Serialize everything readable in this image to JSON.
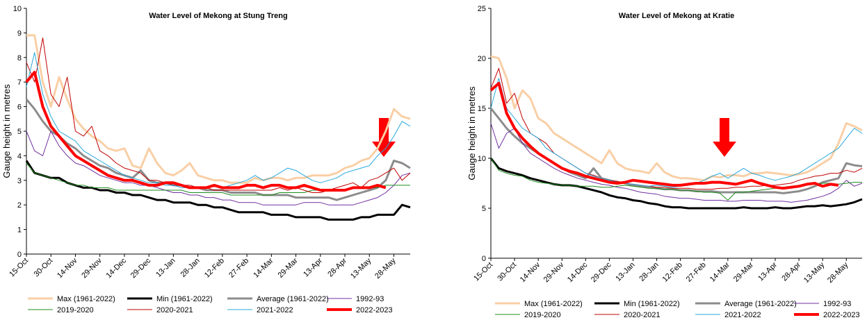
{
  "chart_data": [
    {
      "type": "line",
      "title": "Water Level of Mekong at Stung Treng",
      "y_label": "Gauge height in metres",
      "categories": [
        "15-Oct",
        null,
        null,
        "30-Oct",
        null,
        null,
        "14-Nov",
        null,
        null,
        "29-Nov",
        null,
        null,
        "14-Dec",
        null,
        null,
        "29-Dec",
        null,
        null,
        "13-Jan",
        null,
        null,
        "28-Jan",
        null,
        null,
        "12-Feb",
        null,
        null,
        "27-Feb",
        null,
        null,
        "14-Mar",
        null,
        null,
        "29-Mar",
        null,
        null,
        "13-Apr",
        null,
        null,
        "28-Apr",
        null,
        null,
        "13-May",
        null,
        null,
        "28-May",
        null,
        null
      ],
      "ylim": [
        0,
        10
      ],
      "yticks": [
        0,
        1,
        2,
        3,
        4,
        5,
        6,
        7,
        8,
        9,
        10
      ],
      "grid": false,
      "series": [
        {
          "name": "Max (1961-2022)",
          "color": "#f9cfa6",
          "width": 3,
          "values": [
            8.9,
            8.9,
            7.0,
            6.0,
            7.2,
            6.3,
            5.5,
            5.1,
            4.8,
            4.6,
            4.3,
            4.2,
            4.3,
            3.6,
            3.5,
            4.3,
            3.7,
            3.3,
            3.2,
            3.4,
            3.7,
            3.2,
            3.1,
            3.0,
            3.0,
            2.9,
            2.9,
            2.9,
            3.1,
            3.0,
            3.1,
            3.1,
            3.0,
            3.1,
            3.1,
            3.2,
            3.2,
            3.2,
            3.3,
            3.5,
            3.6,
            3.8,
            3.9,
            4.3,
            5.0,
            5.9,
            5.6,
            5.5
          ]
        },
        {
          "name": "Min (1961-2022)",
          "color": "#000000",
          "width": 3,
          "values": [
            3.8,
            3.3,
            3.2,
            3.1,
            3.1,
            2.9,
            2.8,
            2.7,
            2.7,
            2.6,
            2.6,
            2.5,
            2.5,
            2.4,
            2.4,
            2.3,
            2.2,
            2.2,
            2.1,
            2.1,
            2.1,
            2.0,
            2.0,
            1.9,
            1.9,
            1.8,
            1.7,
            1.7,
            1.7,
            1.7,
            1.6,
            1.6,
            1.6,
            1.5,
            1.5,
            1.5,
            1.5,
            1.4,
            1.4,
            1.4,
            1.4,
            1.5,
            1.5,
            1.6,
            1.6,
            1.6,
            2.0,
            1.9
          ]
        },
        {
          "name": "Average (1961-2022)",
          "color": "#8c8c8c",
          "width": 3,
          "values": [
            6.3,
            5.9,
            5.4,
            5.0,
            4.8,
            4.5,
            4.3,
            4.0,
            3.8,
            3.6,
            3.5,
            3.3,
            3.2,
            3.1,
            3.4,
            3.0,
            2.9,
            2.9,
            2.8,
            2.8,
            2.7,
            2.7,
            2.6,
            2.6,
            2.6,
            2.5,
            2.5,
            2.5,
            2.5,
            2.4,
            2.4,
            2.4,
            2.4,
            2.3,
            2.3,
            2.3,
            2.3,
            2.3,
            2.2,
            2.3,
            2.4,
            2.5,
            2.6,
            2.7,
            3.0,
            3.8,
            3.7,
            3.5
          ]
        },
        {
          "name": "1992-93",
          "color": "#7030a0",
          "width": 1,
          "values": [
            5.0,
            4.2,
            4.0,
            5.0,
            4.4,
            4.0,
            3.7,
            3.6,
            3.4,
            3.2,
            3.1,
            3.0,
            2.9,
            2.9,
            2.8,
            2.8,
            2.7,
            2.6,
            2.5,
            2.5,
            2.4,
            2.4,
            2.3,
            2.3,
            2.2,
            2.2,
            2.1,
            2.1,
            2.1,
            2.0,
            2.0,
            2.0,
            2.0,
            2.0,
            2.1,
            2.1,
            2.1,
            2.0,
            2.0,
            2.0,
            2.0,
            2.1,
            2.2,
            2.3,
            2.5,
            2.8,
            3.2,
            3.3
          ]
        },
        {
          "name": "2019-2020",
          "color": "#1e8c1e",
          "width": 1,
          "values": [
            3.7,
            3.3,
            3.2,
            3.1,
            3.0,
            2.9,
            2.8,
            2.8,
            2.7,
            2.7,
            2.7,
            2.6,
            2.6,
            2.6,
            2.6,
            2.6,
            2.6,
            2.6,
            2.6,
            2.6,
            2.5,
            2.5,
            2.5,
            2.5,
            2.5,
            2.4,
            2.4,
            2.4,
            2.4,
            2.4,
            2.4,
            2.5,
            2.5,
            2.5,
            2.5,
            2.6,
            2.6,
            2.6,
            2.6,
            2.6,
            2.7,
            2.7,
            2.7,
            2.7,
            2.8,
            2.8,
            2.8,
            2.8
          ]
        },
        {
          "name": "2020-2021",
          "color": "#c00000",
          "width": 1,
          "values": [
            7.8,
            7.0,
            8.8,
            6.5,
            6.0,
            7.2,
            5.0,
            4.8,
            5.2,
            4.2,
            4.0,
            3.7,
            3.5,
            3.4,
            3.3,
            3.0,
            3.0,
            2.9,
            2.8,
            2.8,
            2.8,
            2.7,
            2.7,
            2.6,
            2.6,
            2.6,
            2.6,
            2.6,
            2.6,
            2.6,
            2.6,
            2.7,
            2.6,
            2.7,
            2.6,
            2.5,
            2.5,
            2.6,
            2.7,
            2.8,
            2.9,
            2.7,
            3.0,
            3.1,
            3.3,
            3.5,
            3.0,
            3.3
          ]
        },
        {
          "name": "2021-2022",
          "color": "#29a8dc",
          "width": 1,
          "values": [
            6.8,
            8.2,
            6.5,
            5.6,
            5.0,
            4.8,
            4.6,
            4.2,
            4.0,
            3.8,
            3.6,
            3.4,
            3.2,
            3.1,
            3.0,
            2.9,
            2.9,
            2.8,
            2.8,
            2.7,
            2.7,
            2.7,
            2.7,
            2.8,
            2.7,
            2.8,
            2.9,
            3.0,
            3.2,
            3.0,
            3.1,
            3.3,
            3.5,
            3.4,
            3.2,
            3.0,
            2.9,
            3.0,
            3.1,
            3.3,
            3.4,
            3.5,
            3.6,
            4.0,
            4.3,
            4.8,
            5.4,
            5.2
          ]
        },
        {
          "name": "2022-2023",
          "color": "#ff0000",
          "width": 4,
          "values": [
            7.0,
            7.4,
            6.0,
            5.2,
            4.8,
            4.4,
            4.0,
            3.8,
            3.6,
            3.4,
            3.2,
            3.1,
            3.0,
            3.0,
            2.9,
            2.8,
            2.8,
            2.9,
            2.9,
            2.8,
            2.7,
            2.7,
            2.7,
            2.8,
            2.7,
            2.7,
            2.7,
            2.8,
            2.8,
            2.7,
            2.8,
            2.8,
            2.7,
            2.7,
            2.8,
            2.7,
            2.6,
            2.6,
            2.6,
            2.6,
            2.7,
            2.7,
            2.7,
            2.8,
            2.7,
            null,
            null,
            null
          ]
        }
      ]
    },
    {
      "type": "line",
      "title": "Water Level of Mekong at Kratie",
      "y_label": "Gauge height in metres",
      "categories": [
        "15-Oct",
        null,
        null,
        "30-Oct",
        null,
        null,
        "14-Nov",
        null,
        null,
        "29-Nov",
        null,
        null,
        "14-Dec",
        null,
        null,
        "29-Dec",
        null,
        null,
        "13-Jan",
        null,
        null,
        "28-Jan",
        null,
        null,
        "12-Feb",
        null,
        null,
        "27-Feb",
        null,
        null,
        "14-Mar",
        null,
        null,
        "29-Mar",
        null,
        null,
        "13-Apr",
        null,
        null,
        "28-Apr",
        null,
        null,
        "13-May",
        null,
        null,
        "28-May",
        null,
        null
      ],
      "ylim": [
        0,
        25
      ],
      "yticks": [
        0,
        5,
        10,
        15,
        20,
        25
      ],
      "grid": false,
      "series": [
        {
          "name": "Max (1961-2022)",
          "color": "#f9cfa6",
          "width": 3,
          "values": [
            20.2,
            20.0,
            18.0,
            15.0,
            16.8,
            16.0,
            14.0,
            13.5,
            12.5,
            12.0,
            11.5,
            11.0,
            10.5,
            10.0,
            9.5,
            10.8,
            9.5,
            9.0,
            8.8,
            8.7,
            8.5,
            9.5,
            8.6,
            8.2,
            8.0,
            8.0,
            7.9,
            7.8,
            8.2,
            8.1,
            8.3,
            8.3,
            8.2,
            8.5,
            8.5,
            8.6,
            8.5,
            8.4,
            8.3,
            8.4,
            8.6,
            9.0,
            9.5,
            10.0,
            11.5,
            13.5,
            13.2,
            12.8
          ]
        },
        {
          "name": "Min (1961-2022)",
          "color": "#000000",
          "width": 3,
          "values": [
            10.0,
            9.0,
            8.7,
            8.5,
            8.3,
            8.0,
            7.8,
            7.6,
            7.4,
            7.3,
            7.3,
            7.2,
            7.0,
            6.8,
            6.6,
            6.3,
            6.1,
            6.0,
            5.8,
            5.7,
            5.5,
            5.4,
            5.2,
            5.1,
            5.1,
            5.0,
            5.0,
            5.0,
            5.0,
            5.0,
            5.0,
            5.0,
            5.1,
            5.0,
            5.0,
            5.0,
            5.1,
            5.0,
            5.0,
            5.1,
            5.2,
            5.2,
            5.3,
            5.2,
            5.3,
            5.4,
            5.6,
            5.9
          ]
        },
        {
          "name": "Average (1961-2022)",
          "color": "#8c8c8c",
          "width": 3,
          "values": [
            15.0,
            14.0,
            13.0,
            12.2,
            11.5,
            11.0,
            10.5,
            10.0,
            9.5,
            9.0,
            8.6,
            8.3,
            8.0,
            9.0,
            8.0,
            7.8,
            7.6,
            7.5,
            7.3,
            7.2,
            7.1,
            7.0,
            6.9,
            6.9,
            6.8,
            6.8,
            6.7,
            6.7,
            6.7,
            6.6,
            6.6,
            6.6,
            6.6,
            6.6,
            6.6,
            6.6,
            6.6,
            6.5,
            6.6,
            6.7,
            6.9,
            7.2,
            7.6,
            7.8,
            8.0,
            9.5,
            9.3,
            9.2
          ]
        },
        {
          "name": "1992-93",
          "color": "#7030a0",
          "width": 1,
          "values": [
            13.5,
            11.0,
            12.5,
            13.0,
            11.5,
            10.5,
            10.0,
            9.5,
            9.0,
            8.6,
            8.3,
            8.0,
            7.8,
            7.6,
            7.4,
            7.3,
            7.1,
            7.0,
            6.8,
            6.6,
            6.5,
            6.4,
            6.2,
            6.1,
            6.0,
            6.0,
            5.9,
            5.8,
            5.8,
            5.8,
            5.7,
            5.7,
            5.8,
            5.8,
            5.8,
            5.7,
            5.7,
            5.7,
            5.6,
            5.7,
            5.8,
            6.0,
            6.2,
            6.5,
            7.0,
            7.8,
            7.2,
            7.5
          ]
        },
        {
          "name": "2019-2020",
          "color": "#1e8c1e",
          "width": 1,
          "values": [
            10.0,
            8.8,
            8.5,
            8.3,
            8.2,
            7.8,
            7.6,
            7.5,
            7.4,
            7.3,
            7.3,
            7.2,
            7.2,
            7.2,
            7.1,
            7.1,
            7.2,
            7.3,
            7.2,
            7.1,
            7.0,
            7.0,
            6.9,
            6.9,
            6.8,
            6.8,
            6.7,
            6.6,
            6.6,
            6.5,
            5.8,
            6.6,
            6.6,
            6.7,
            6.8,
            6.9,
            7.0,
            7.1,
            7.2,
            7.3,
            7.3,
            7.4,
            7.5,
            7.5,
            7.4,
            7.5,
            7.6,
            7.6
          ]
        },
        {
          "name": "2020-2021",
          "color": "#c00000",
          "width": 1,
          "values": [
            17.0,
            19.0,
            15.5,
            16.5,
            14.0,
            12.5,
            12.0,
            11.5,
            10.5,
            10.0,
            9.5,
            9.0,
            8.5,
            8.3,
            8.0,
            7.8,
            7.7,
            7.5,
            7.4,
            7.3,
            7.2,
            7.1,
            7.1,
            7.0,
            7.0,
            7.0,
            6.9,
            6.9,
            6.9,
            7.0,
            7.0,
            7.1,
            7.1,
            7.2,
            7.2,
            7.3,
            7.3,
            7.4,
            7.5,
            7.8,
            8.0,
            8.2,
            8.3,
            8.5,
            8.5,
            8.8,
            8.6,
            9.0
          ]
        },
        {
          "name": "2021-2022",
          "color": "#29a8dc",
          "width": 1,
          "values": [
            15.0,
            18.0,
            15.0,
            14.0,
            13.0,
            12.5,
            12.0,
            11.0,
            10.5,
            10.0,
            9.5,
            9.0,
            8.5,
            8.2,
            8.0,
            7.8,
            7.6,
            7.5,
            7.4,
            7.3,
            7.2,
            7.3,
            7.2,
            7.1,
            7.2,
            7.3,
            7.5,
            7.8,
            8.2,
            8.5,
            8.0,
            8.5,
            9.0,
            8.5,
            8.3,
            8.0,
            7.8,
            8.0,
            8.2,
            8.5,
            9.0,
            9.5,
            10.0,
            10.5,
            11.0,
            12.0,
            13.0,
            12.5
          ]
        },
        {
          "name": "2022-2023",
          "color": "#ff0000",
          "width": 4,
          "values": [
            16.8,
            17.5,
            14.5,
            13.0,
            12.0,
            11.2,
            10.5,
            10.0,
            9.5,
            9.0,
            8.7,
            8.5,
            8.2,
            8.0,
            7.8,
            7.6,
            7.5,
            7.6,
            7.8,
            7.7,
            7.6,
            7.5,
            7.4,
            7.3,
            7.3,
            7.4,
            7.5,
            7.5,
            7.6,
            7.6,
            7.5,
            7.4,
            7.6,
            7.8,
            7.5,
            7.3,
            7.1,
            7.0,
            7.1,
            7.2,
            7.4,
            7.5,
            7.2,
            7.4,
            7.3,
            null,
            null,
            null
          ]
        }
      ]
    }
  ]
}
